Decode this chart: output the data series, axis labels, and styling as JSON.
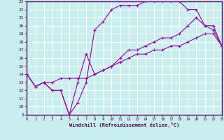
{
  "xlabel": "Windchill (Refroidissement éolien,°C)",
  "xlim": [
    0,
    23
  ],
  "ylim": [
    9,
    23
  ],
  "xticks": [
    0,
    1,
    2,
    3,
    4,
    5,
    6,
    7,
    8,
    9,
    10,
    11,
    12,
    13,
    14,
    15,
    16,
    17,
    18,
    19,
    20,
    21,
    22,
    23
  ],
  "yticks": [
    9,
    10,
    11,
    12,
    13,
    14,
    15,
    16,
    17,
    18,
    19,
    20,
    21,
    22,
    23
  ],
  "bg_color": "#c8eef0",
  "grid_color": "#ffffff",
  "line_color": "#990099",
  "line1_x": [
    0,
    1,
    2,
    3,
    4,
    5,
    6,
    7,
    8,
    9,
    10,
    11,
    12,
    13,
    14,
    15,
    16,
    17,
    18,
    19,
    20,
    21,
    22,
    23
  ],
  "line1_y": [
    14,
    12.5,
    13,
    12,
    12,
    9,
    13,
    16.5,
    14,
    14.5,
    15,
    16,
    17,
    17,
    17.5,
    18,
    18.5,
    18.5,
    19,
    20,
    21,
    20,
    20,
    17.5
  ],
  "line2_x": [
    0,
    1,
    2,
    3,
    4,
    5,
    6,
    7,
    8,
    9,
    10,
    11,
    12,
    13,
    14,
    15,
    16,
    17,
    18,
    19,
    20,
    21,
    22,
    23
  ],
  "line2_y": [
    14,
    12.5,
    13,
    12,
    12,
    9,
    10.5,
    13,
    19.5,
    20.5,
    22,
    22.5,
    22.5,
    22.5,
    23,
    23,
    23,
    23,
    23,
    22,
    22,
    20,
    19.5,
    17.5
  ],
  "line3_x": [
    0,
    1,
    2,
    3,
    4,
    5,
    6,
    7,
    8,
    9,
    10,
    11,
    12,
    13,
    14,
    15,
    16,
    17,
    18,
    19,
    20,
    21,
    22,
    23
  ],
  "line3_y": [
    14,
    12.5,
    13,
    13,
    13.5,
    13.5,
    13.5,
    13.5,
    14,
    14.5,
    15,
    15.5,
    16,
    16.5,
    16.5,
    17,
    17,
    17.5,
    17.5,
    18,
    18.5,
    19,
    19,
    17.5
  ]
}
